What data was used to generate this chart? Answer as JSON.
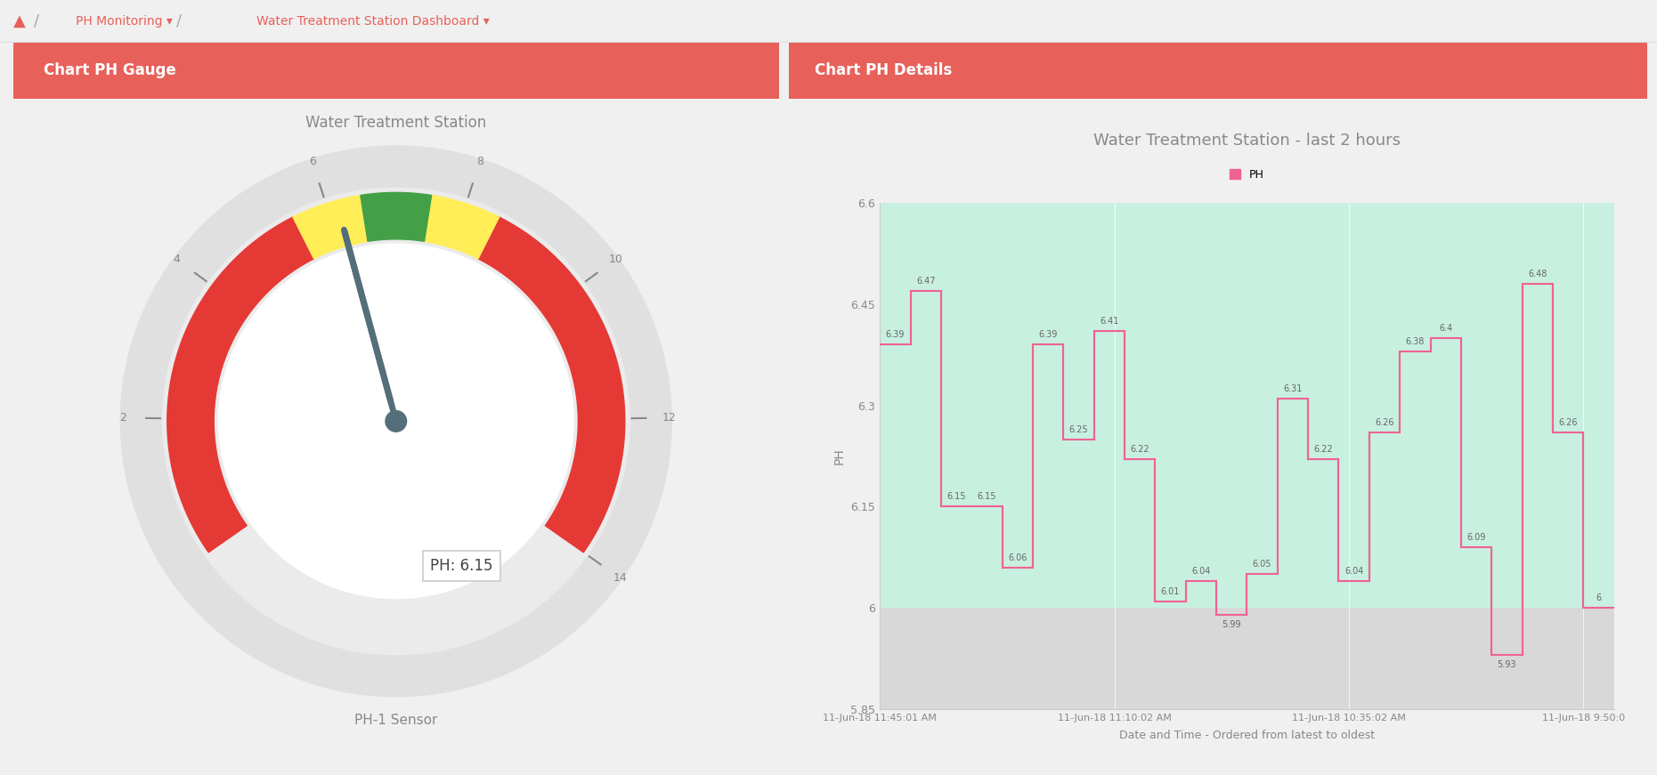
{
  "gauge_title": "Water Treatment Station",
  "gauge_subtitle": "PH-1 Sensor",
  "ph_value": 6.15,
  "gauge_min": 0,
  "gauge_max": 14,
  "gauge_ticks": [
    2,
    4,
    6,
    8,
    10,
    12,
    14
  ],
  "chart_title": "Water Treatment Station - last 2 hours",
  "chart_xlabel": "Date and Time - Ordered from latest to oldest",
  "chart_ylabel": "PH",
  "chart_legend": "PH",
  "ylim_min": 5.85,
  "ylim_max": 6.6,
  "green_threshold": 6.0,
  "x_labels": [
    "11-Jun-18 11:45:01 AM",
    "11-Jun-18 11:10:02 AM",
    "11-Jun-18 10:35:02 AM",
    "11-Jun-18 9:50:0"
  ],
  "ph_data": [
    6.39,
    6.47,
    6.15,
    6.15,
    6.06,
    6.39,
    6.25,
    6.41,
    6.22,
    6.01,
    6.04,
    5.99,
    6.05,
    6.31,
    6.22,
    6.04,
    6.26,
    6.38,
    6.4,
    6.09,
    5.93,
    6.48,
    6.26,
    6.0
  ],
  "ph_labels": [
    "6.39",
    "6.47",
    "6.15",
    "6.15",
    "6.06",
    "6.39",
    "6.25",
    "6.41",
    "6.22",
    "6.01",
    "6.04",
    "5.99",
    "6.05",
    "6.31",
    "6.22",
    "6.04",
    "6.26",
    "6.38",
    "6.4",
    "6.09",
    "5.93",
    "6.48",
    "6.26",
    "6"
  ],
  "panel_header_color": "#e8605a",
  "line_color": "#f06292",
  "fill_green": "#c8f0e0",
  "fill_gray": "#d8d8d8",
  "needle_color": "#546e7a",
  "text_color": "#888888",
  "nav_text_color": "#e8605a",
  "gauge_outer_color": "#e0e0e0",
  "gauge_mid_color": "#ebebeb",
  "gauge_inner_color": "#ffffff",
  "red_color": "#e53935",
  "yellow_color": "#ffee58",
  "green_color": "#43a047"
}
